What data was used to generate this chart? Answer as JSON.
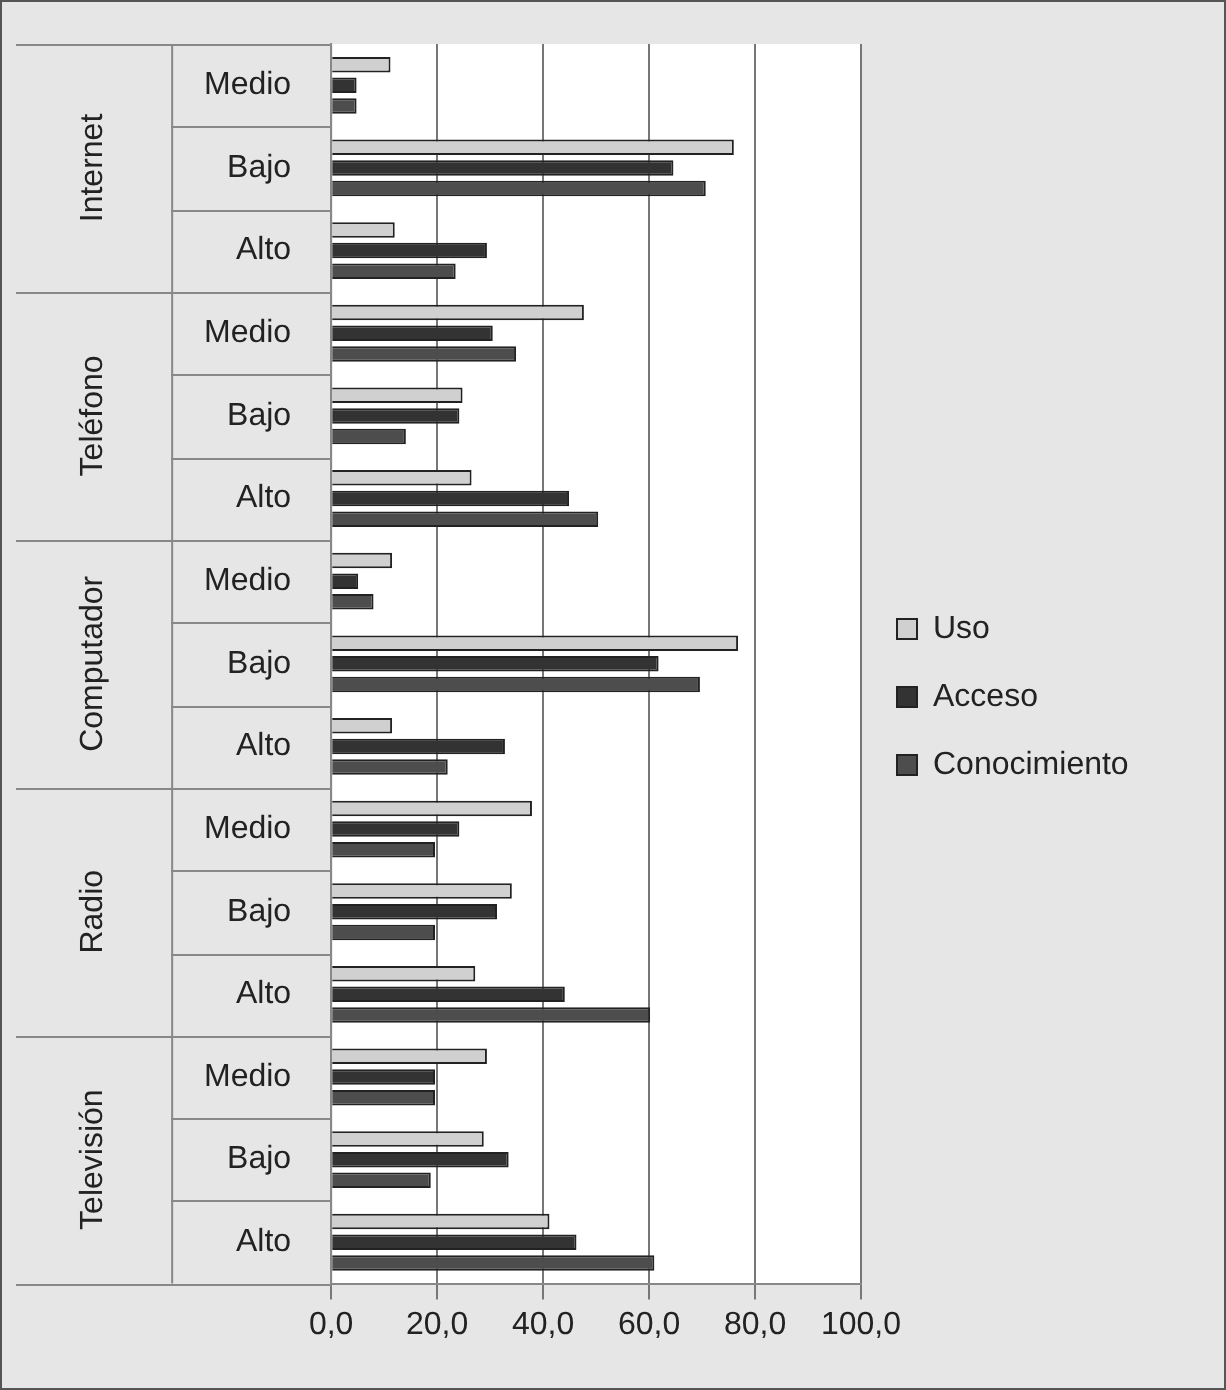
{
  "chart_data": {
    "type": "bar",
    "orientation": "horizontal",
    "categories": [
      "Medio",
      "Bajo",
      "Alto",
      "Medio",
      "Bajo",
      "Alto",
      "Medio",
      "Bajo",
      "Alto",
      "Medio",
      "Bajo",
      "Alto",
      "Medio",
      "Bajo",
      "Alto"
    ],
    "annotations": [
      "Internet",
      "Teléfono",
      "Computador",
      "Radio",
      "Televisión"
    ],
    "series": [
      {
        "name": "Uso",
        "color": "#d0d0d0",
        "values": [
          11.2,
          76,
          12,
          47.7,
          24.8,
          26.5,
          11.5,
          76.8,
          11.5,
          37.9,
          34.1,
          27.2,
          29.4,
          28.8,
          41.2
        ]
      },
      {
        "name": "Acceso",
        "color": "#333333",
        "values": [
          4.8,
          64.6,
          29.4,
          30.5,
          24.2,
          44.9,
          5.1,
          61.8,
          32.8,
          24.2,
          31.3,
          44.1,
          19.6,
          33.5,
          46.3
        ]
      },
      {
        "name": "Conocimiento",
        "color": "#4d4d4d",
        "values": [
          4.8,
          70.7,
          23.5,
          34.9,
          14.1,
          50.4,
          8,
          69.6,
          22,
          19.6,
          19.6,
          60.2,
          19.6,
          18.8,
          61
        ]
      }
    ],
    "xlim": [
      0,
      100
    ],
    "xticks": [
      {
        "value": 0,
        "label": "0,0"
      },
      {
        "value": 20,
        "label": "20,0"
      },
      {
        "value": 40,
        "label": "40,0"
      },
      {
        "value": 60,
        "label": "60,0"
      },
      {
        "value": 80,
        "label": "80,0"
      },
      {
        "value": 100,
        "label": "100,0"
      }
    ],
    "grid": "x",
    "legend": "right"
  }
}
